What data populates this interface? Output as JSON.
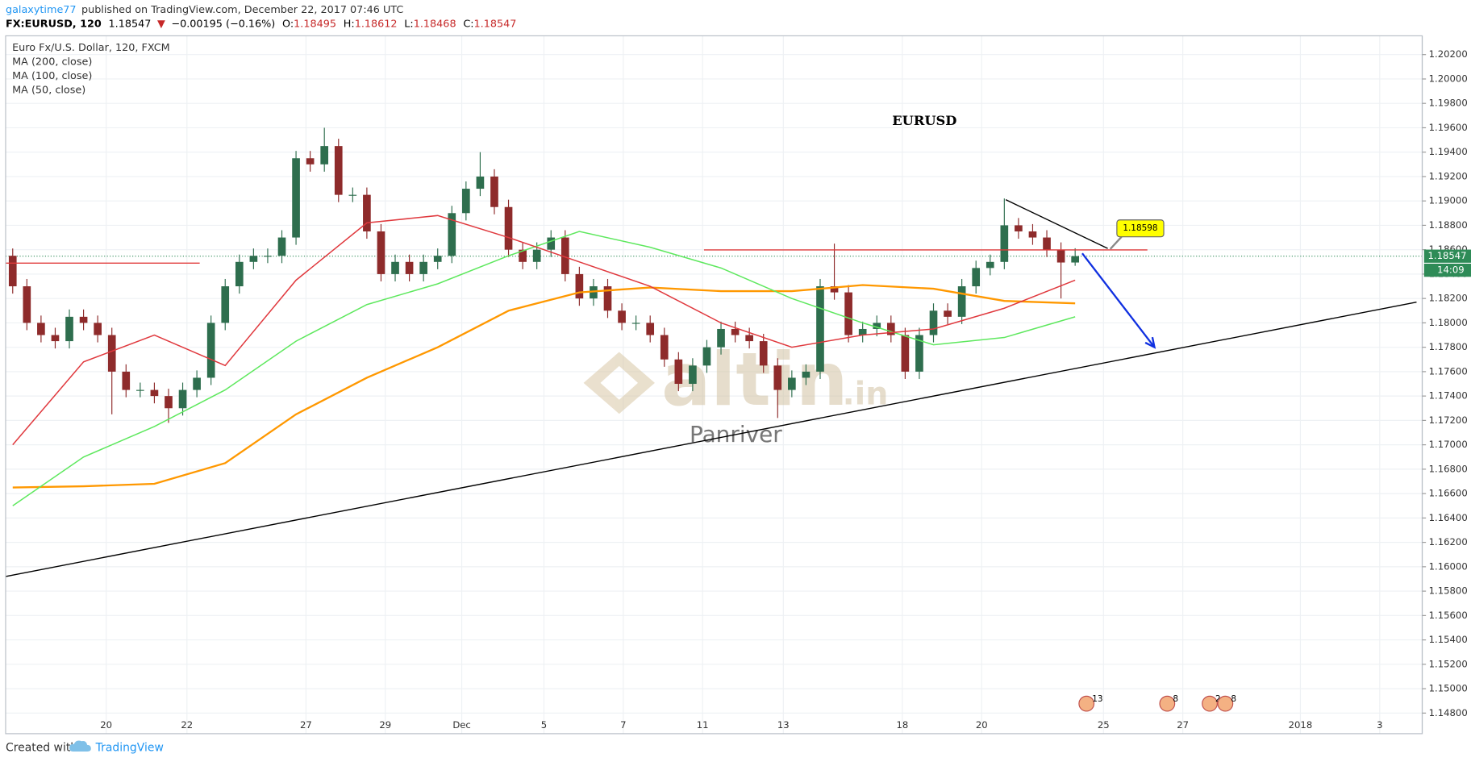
{
  "header": {
    "author": "galaxytime77",
    "published": "published on TradingView.com, December 22, 2017 07:46 UTC",
    "symbol": "FX:EURUSD, 120",
    "arrow": "▼",
    "change": "−0.00195 (−0.16%)",
    "ohlc_labels": [
      "O:",
      "H:",
      "L:",
      "C:"
    ]
  },
  "footer": {
    "created": "Created with",
    "brand": "TradingView"
  },
  "chart_data": {
    "type": "candlestick",
    "symbol_name": "Euro Fx/U.S. Dollar, 120, FXCM",
    "title": "EURUSD",
    "watermark": {
      "main": "altin",
      "suffix": ".in",
      "sub": "Panriver"
    },
    "countdown": "14:09",
    "up_color": "#2e6e4e",
    "down_color": "#8e2b2b",
    "x": [
      0,
      1,
      2,
      3,
      4,
      5,
      6,
      7,
      8,
      9,
      10,
      11,
      12,
      13,
      14,
      15,
      16,
      17,
      18,
      19,
      20,
      21,
      22,
      23,
      24,
      25,
      26,
      27,
      28,
      29,
      30,
      31,
      32,
      33,
      34,
      35,
      36,
      37,
      38,
      39,
      40,
      41,
      42,
      43,
      44,
      45,
      46,
      47,
      48,
      49,
      50,
      51,
      52,
      53,
      54,
      55,
      56,
      57,
      58,
      59,
      60,
      61,
      62,
      63,
      64,
      65,
      66,
      67,
      68,
      69,
      70,
      71,
      72,
      73,
      74,
      75
    ],
    "open": [
      1.1855,
      1.183,
      1.18,
      1.179,
      1.1785,
      1.1805,
      1.18,
      1.179,
      1.176,
      1.1745,
      1.1745,
      1.174,
      1.173,
      1.1745,
      1.1755,
      1.18,
      1.183,
      1.185,
      1.1855,
      1.1855,
      1.187,
      1.1935,
      1.193,
      1.1945,
      1.1905,
      1.1905,
      1.1875,
      1.184,
      1.185,
      1.184,
      1.185,
      1.1855,
      1.189,
      1.191,
      1.192,
      1.1895,
      1.186,
      1.185,
      1.186,
      1.187,
      1.184,
      1.182,
      1.183,
      1.181,
      1.18,
      1.18,
      1.179,
      1.177,
      1.175,
      1.1765,
      1.178,
      1.1795,
      1.179,
      1.1785,
      1.1765,
      1.1745,
      1.1755,
      1.176,
      1.183,
      1.1825,
      1.179,
      1.1795,
      1.18,
      1.179,
      1.176,
      1.179,
      1.181,
      1.1805,
      1.183,
      1.1845,
      1.185,
      1.188,
      1.1875,
      1.187,
      1.186,
      1.18495
    ],
    "high": [
      1.1861,
      1.1836,
      1.1806,
      1.1796,
      1.1811,
      1.1811,
      1.1806,
      1.1796,
      1.1766,
      1.1751,
      1.1751,
      1.1746,
      1.1751,
      1.1761,
      1.1806,
      1.1836,
      1.1856,
      1.1861,
      1.1861,
      1.1876,
      1.1941,
      1.1941,
      1.196,
      1.1951,
      1.1911,
      1.1911,
      1.1881,
      1.1856,
      1.1856,
      1.1856,
      1.1861,
      1.1896,
      1.1916,
      1.194,
      1.1926,
      1.1901,
      1.1866,
      1.1866,
      1.1876,
      1.1876,
      1.1846,
      1.1836,
      1.1836,
      1.1816,
      1.1806,
      1.1806,
      1.1796,
      1.1776,
      1.1771,
      1.1786,
      1.1801,
      1.1801,
      1.1796,
      1.1791,
      1.1771,
      1.1761,
      1.1766,
      1.1836,
      1.1865,
      1.1831,
      1.1801,
      1.1806,
      1.1806,
      1.1796,
      1.1796,
      1.1816,
      1.1816,
      1.1836,
      1.1851,
      1.1856,
      1.1902,
      1.1886,
      1.1881,
      1.1876,
      1.1866,
      1.18612
    ],
    "low": [
      1.1824,
      1.1794,
      1.1784,
      1.1779,
      1.1779,
      1.1794,
      1.1784,
      1.1725,
      1.1739,
      1.1739,
      1.1734,
      1.1718,
      1.1724,
      1.1739,
      1.1749,
      1.1794,
      1.1824,
      1.1844,
      1.1849,
      1.1849,
      1.1864,
      1.1924,
      1.1924,
      1.1899,
      1.1899,
      1.1869,
      1.1834,
      1.1834,
      1.1834,
      1.1834,
      1.1844,
      1.1849,
      1.1884,
      1.1904,
      1.1889,
      1.1854,
      1.1844,
      1.1844,
      1.1854,
      1.1834,
      1.1814,
      1.1814,
      1.1804,
      1.1794,
      1.1794,
      1.1784,
      1.1764,
      1.1744,
      1.1744,
      1.1759,
      1.1774,
      1.1784,
      1.1779,
      1.1759,
      1.1722,
      1.1739,
      1.1749,
      1.1754,
      1.1819,
      1.1784,
      1.1784,
      1.1789,
      1.1784,
      1.1754,
      1.1754,
      1.1784,
      1.1799,
      1.1799,
      1.1824,
      1.1839,
      1.1844,
      1.1869,
      1.1864,
      1.1854,
      1.182,
      1.18468
    ],
    "close": [
      1.183,
      1.18,
      1.179,
      1.1785,
      1.1805,
      1.18,
      1.179,
      1.176,
      1.1745,
      1.1745,
      1.174,
      1.173,
      1.1745,
      1.1755,
      1.18,
      1.183,
      1.185,
      1.1855,
      1.1855,
      1.187,
      1.1935,
      1.193,
      1.1945,
      1.1905,
      1.1905,
      1.1875,
      1.184,
      1.185,
      1.184,
      1.185,
      1.1855,
      1.189,
      1.191,
      1.192,
      1.1895,
      1.186,
      1.185,
      1.186,
      1.187,
      1.184,
      1.182,
      1.183,
      1.181,
      1.18,
      1.18,
      1.179,
      1.177,
      1.175,
      1.1765,
      1.178,
      1.1795,
      1.179,
      1.1785,
      1.1765,
      1.1745,
      1.1755,
      1.176,
      1.183,
      1.1825,
      1.179,
      1.1795,
      1.18,
      1.179,
      1.176,
      1.179,
      1.181,
      1.1805,
      1.183,
      1.1845,
      1.185,
      1.188,
      1.1875,
      1.187,
      1.186,
      1.18495,
      1.18547
    ],
    "series": [
      {
        "name": "MA (200, close)",
        "color": "#ff9800",
        "x": [
          0,
          5,
          10,
          15,
          20,
          25,
          30,
          35,
          40,
          45,
          50,
          55,
          60,
          65,
          70,
          75
        ],
        "values": [
          1.1665,
          1.1666,
          1.1668,
          1.1685,
          1.1725,
          1.1755,
          1.178,
          1.181,
          1.1825,
          1.1829,
          1.1826,
          1.1826,
          1.1831,
          1.1828,
          1.1818,
          1.1816
        ]
      },
      {
        "name": "MA (100, close)",
        "color": "#5ee85e",
        "x": [
          0,
          5,
          10,
          15,
          20,
          25,
          30,
          35,
          40,
          45,
          50,
          55,
          60,
          65,
          70,
          75
        ],
        "values": [
          1.165,
          1.169,
          1.1715,
          1.1745,
          1.1785,
          1.1815,
          1.1832,
          1.1855,
          1.1875,
          1.1862,
          1.1845,
          1.182,
          1.18,
          1.1782,
          1.1788,
          1.1805
        ]
      },
      {
        "name": "MA (50, close)",
        "color": "#e0393e",
        "x": [
          0,
          5,
          10,
          15,
          20,
          25,
          30,
          35,
          40,
          45,
          50,
          55,
          60,
          65,
          70,
          75
        ],
        "values": [
          1.17,
          1.1768,
          1.179,
          1.1765,
          1.1835,
          1.1882,
          1.1888,
          1.187,
          1.185,
          1.183,
          1.18,
          1.178,
          1.179,
          1.1795,
          1.1812,
          1.1835
        ]
      }
    ],
    "drawings": [
      {
        "style": "line",
        "color": "#000000",
        "x": [
          -0.5,
          99.1
        ],
        "y": [
          1.1592,
          1.1817
        ]
      },
      {
        "style": "line",
        "color": "#e03a3a",
        "x": [
          -0.5,
          13.2
        ],
        "y": [
          1.1849,
          1.1849
        ]
      },
      {
        "style": "line",
        "color": "#e03a3a",
        "x": [
          48.8,
          80.1
        ],
        "y": [
          1.18598,
          1.18598
        ]
      },
      {
        "style": "line",
        "color": "#000000",
        "x": [
          70.1,
          77.3
        ],
        "y": [
          1.1901,
          1.1861
        ]
      },
      {
        "style": "arrow",
        "color": "#1030e0",
        "x": [
          75.5,
          80.6
        ],
        "y": [
          1.1857,
          1.178
        ]
      }
    ],
    "price_label": {
      "x": 79.6,
      "value": 1.18598
    },
    "events": [
      {
        "x": 75.8,
        "label": "13"
      },
      {
        "x": 81.5,
        "label": "8"
      },
      {
        "x": 84.5,
        "label": "2"
      },
      {
        "x": 85.6,
        "label": "8"
      }
    ],
    "xlim": [
      -0.5,
      99.5
    ],
    "xticks": [
      {
        "value": 6.6,
        "label": "20"
      },
      {
        "value": 12.3,
        "label": "22"
      },
      {
        "value": 20.7,
        "label": "27"
      },
      {
        "value": 26.3,
        "label": "29"
      },
      {
        "value": 31.7,
        "label": "Dec"
      },
      {
        "value": 37.5,
        "label": "5"
      },
      {
        "value": 43.1,
        "label": "7"
      },
      {
        "value": 48.7,
        "label": "11"
      },
      {
        "value": 54.4,
        "label": "13"
      },
      {
        "value": 62.8,
        "label": "18"
      },
      {
        "value": 68.4,
        "label": "20"
      },
      {
        "value": 77.0,
        "label": "25"
      },
      {
        "value": 82.6,
        "label": "27"
      },
      {
        "value": 90.9,
        "label": "2018"
      },
      {
        "value": 96.5,
        "label": "3"
      }
    ],
    "ylim": [
      1.14631,
      1.20354
    ],
    "yticks": [
      {
        "value": 1.148,
        "label": "1.14800"
      },
      {
        "value": 1.15,
        "label": "1.15000"
      },
      {
        "value": 1.152,
        "label": "1.15200"
      },
      {
        "value": 1.154,
        "label": "1.15400"
      },
      {
        "value": 1.156,
        "label": "1.15600"
      },
      {
        "value": 1.158,
        "label": "1.15800"
      },
      {
        "value": 1.16,
        "label": "1.16000"
      },
      {
        "value": 1.162,
        "label": "1.16200"
      },
      {
        "value": 1.164,
        "label": "1.16400"
      },
      {
        "value": 1.166,
        "label": "1.16600"
      },
      {
        "value": 1.168,
        "label": "1.16800"
      },
      {
        "value": 1.17,
        "label": "1.17000"
      },
      {
        "value": 1.172,
        "label": "1.17200"
      },
      {
        "value": 1.174,
        "label": "1.17400"
      },
      {
        "value": 1.176,
        "label": "1.17600"
      },
      {
        "value": 1.178,
        "label": "1.17800"
      },
      {
        "value": 1.18,
        "label": "1.18000"
      },
      {
        "value": 1.182,
        "label": "1.18200"
      },
      {
        "value": 1.184,
        "label": "1.18400"
      },
      {
        "value": 1.186,
        "label": "1.18600"
      },
      {
        "value": 1.188,
        "label": "1.18800"
      },
      {
        "value": 1.19,
        "label": "1.19000"
      },
      {
        "value": 1.192,
        "label": "1.19200"
      },
      {
        "value": 1.194,
        "label": "1.19400"
      },
      {
        "value": 1.196,
        "label": "1.19600"
      },
      {
        "value": 1.198,
        "label": "1.19800"
      },
      {
        "value": 1.2,
        "label": "1.20000"
      },
      {
        "value": 1.202,
        "label": "1.20200"
      }
    ],
    "grid": true
  }
}
